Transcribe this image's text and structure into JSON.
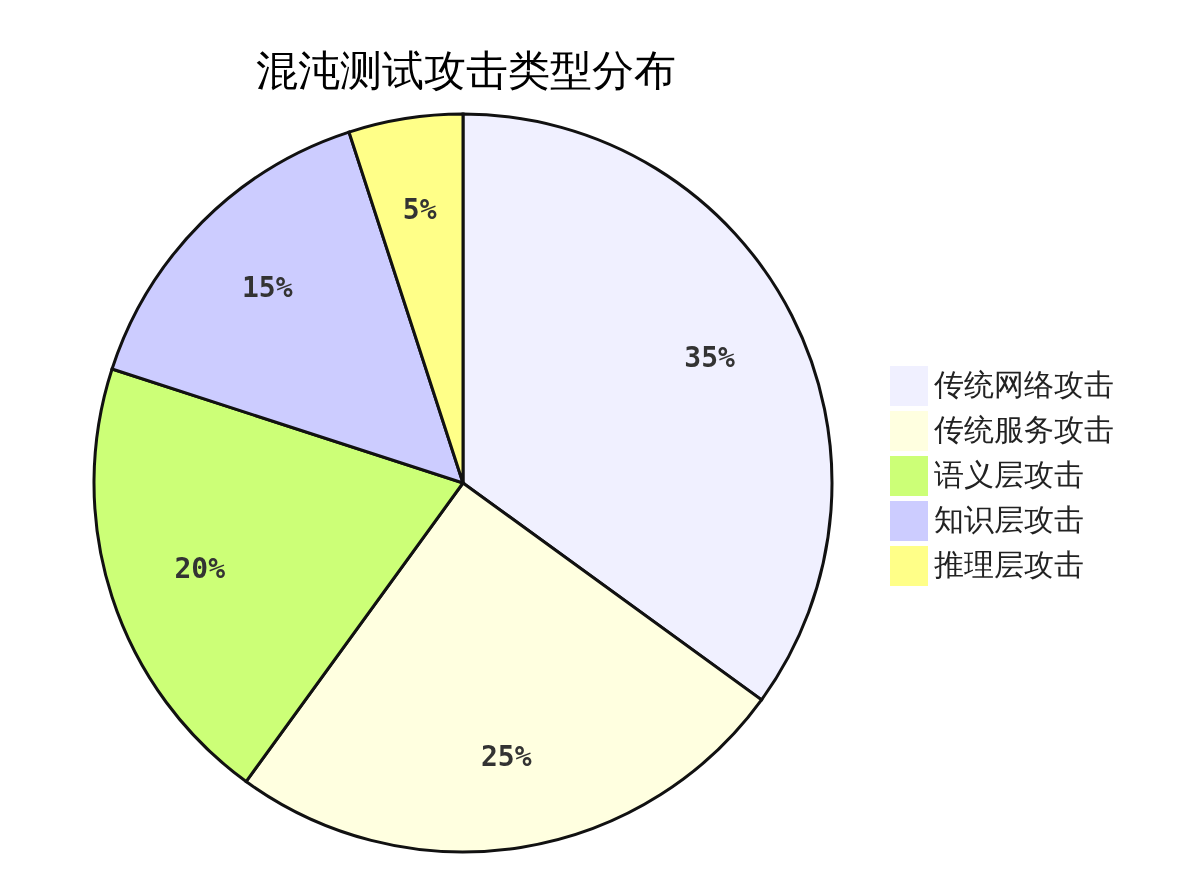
{
  "chart_data": {
    "type": "pie",
    "title": "混沌测试攻击类型分布",
    "categories": [
      "传统网络攻击",
      "传统服务攻击",
      "语义层攻击",
      "知识层攻击",
      "推理层攻击"
    ],
    "values": [
      35,
      25,
      20,
      15,
      5
    ],
    "value_labels": [
      "35%",
      "25%",
      "20%",
      "15%",
      "5%"
    ],
    "colors": [
      "#f0f0ff",
      "#ffffe0",
      "#ccff77",
      "#ccccff",
      "#ffff88"
    ],
    "legend": "right"
  }
}
